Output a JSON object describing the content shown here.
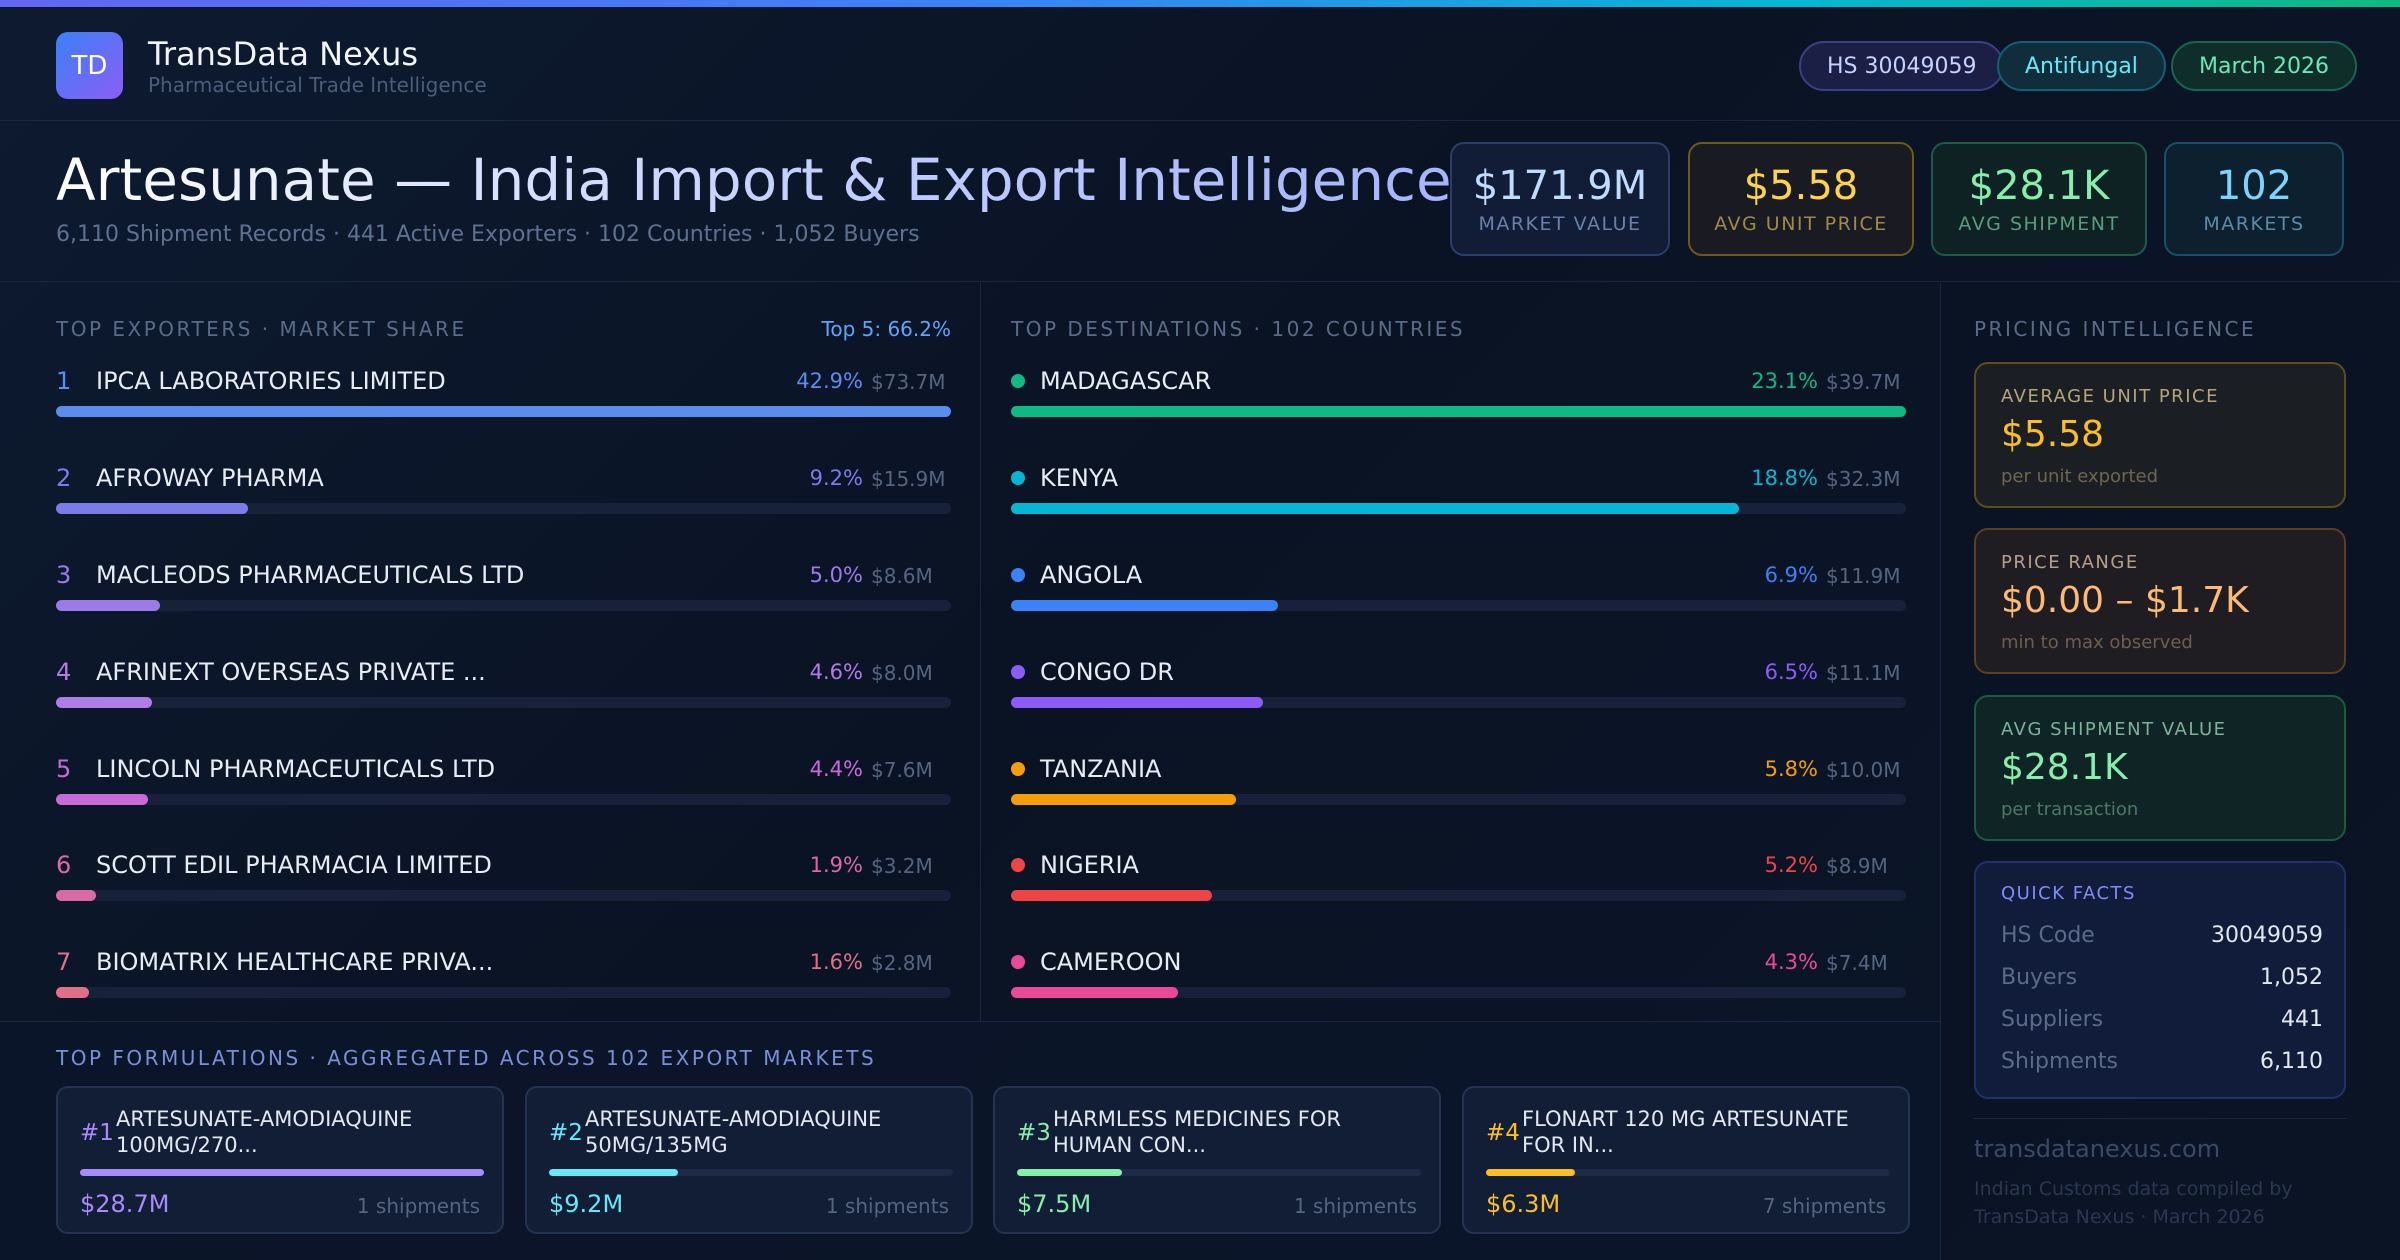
{
  "brand": {
    "logo": "TD",
    "name": "TransData Nexus",
    "subtitle": "Pharmaceutical Trade Intelligence"
  },
  "chips": {
    "hs": "HS 30049059",
    "category": "Antifungal",
    "date": "March 2026"
  },
  "hero": {
    "title": "Artesunate — India Import & Export Intelligence",
    "subtitle": "6,110 Shipment Records · 441 Active Exporters · 102 Countries · 1,052 Buyers"
  },
  "kpis": [
    {
      "value": "$171.9M",
      "label": "MARKET VALUE"
    },
    {
      "value": "$5.58",
      "label": "AVG UNIT PRICE"
    },
    {
      "value": "$28.1K",
      "label": "AVG SHIPMENT"
    },
    {
      "value": "102",
      "label": "MARKETS"
    }
  ],
  "exporters": {
    "label": "TOP EXPORTERS · MARKET SHARE",
    "top5": "Top 5: 66.2%",
    "items": [
      {
        "rank": "1",
        "name": "IPCA LABORATORIES LIMITED",
        "pct": "42.9%",
        "value": "$73.7M",
        "share": 42.9,
        "color": "#5b8def"
      },
      {
        "rank": "2",
        "name": "AFROWAY PHARMA",
        "pct": "9.2%",
        "value": "$15.9M",
        "share": 9.2,
        "color": "#7c7ce8"
      },
      {
        "rank": "3",
        "name": "MACLEODS PHARMACEUTICALS LTD",
        "pct": "5.0%",
        "value": "$8.6M",
        "share": 5.0,
        "color": "#9b7be8"
      },
      {
        "rank": "4",
        "name": "AFRINEXT OVERSEAS PRIVATE ...",
        "pct": "4.6%",
        "value": "$8.0M",
        "share": 4.6,
        "color": "#b07ce6"
      },
      {
        "rank": "5",
        "name": "LINCOLN PHARMACEUTICALS LTD",
        "pct": "4.4%",
        "value": "$7.6M",
        "share": 4.4,
        "color": "#c86ad8"
      },
      {
        "rank": "6",
        "name": "SCOTT EDIL PHARMACIA LIMITED",
        "pct": "1.9%",
        "value": "$3.2M",
        "share": 1.9,
        "color": "#d86aa8"
      },
      {
        "rank": "7",
        "name": "BIOMATRIX HEALTHCARE PRIVA...",
        "pct": "1.6%",
        "value": "$2.8M",
        "share": 1.6,
        "color": "#e07088"
      }
    ]
  },
  "destinations": {
    "label": "TOP DESTINATIONS · 102 COUNTRIES",
    "items": [
      {
        "name": "MADAGASCAR",
        "pct": "23.1%",
        "value": "$39.7M",
        "share": 23.1,
        "color": "#10b981"
      },
      {
        "name": "KENYA",
        "pct": "18.8%",
        "value": "$32.3M",
        "share": 18.8,
        "color": "#06b6d4"
      },
      {
        "name": "ANGOLA",
        "pct": "6.9%",
        "value": "$11.9M",
        "share": 6.9,
        "color": "#3b82f6"
      },
      {
        "name": "CONGO DR",
        "pct": "6.5%",
        "value": "$11.1M",
        "share": 6.5,
        "color": "#8b5cf6"
      },
      {
        "name": "TANZANIA",
        "pct": "5.8%",
        "value": "$10.0M",
        "share": 5.8,
        "color": "#f59e0b"
      },
      {
        "name": "NIGERIA",
        "pct": "5.2%",
        "value": "$8.9M",
        "share": 5.2,
        "color": "#ef4444"
      },
      {
        "name": "CAMEROON",
        "pct": "4.3%",
        "value": "$7.4M",
        "share": 4.3,
        "color": "#ec4899"
      }
    ]
  },
  "formulations": {
    "label": "TOP FORMULATIONS · AGGREGATED ACROSS 102 EXPORT MARKETS",
    "items": [
      {
        "num": "#1",
        "name": "ARTESUNATE-AMODIAQUINE 100MG/270...",
        "value": "$28.7M",
        "shipments": "1 shipments",
        "level": 1.0,
        "color": "#a78bfa"
      },
      {
        "num": "#2",
        "name": "ARTESUNATE-AMODIAQUINE 50MG/135MG",
        "value": "$9.2M",
        "shipments": "1 shipments",
        "level": 0.32,
        "color": "#67e8f9"
      },
      {
        "num": "#3",
        "name": "HARMLESS MEDICINES FOR HUMAN CON...",
        "value": "$7.5M",
        "shipments": "1 shipments",
        "level": 0.26,
        "color": "#86efac"
      },
      {
        "num": "#4",
        "name": "FLONART 120 MG ARTESUNATE FOR IN...",
        "value": "$6.3M",
        "shipments": "7 shipments",
        "level": 0.22,
        "color": "#fbbf24"
      }
    ]
  },
  "pricing": {
    "label": "PRICING INTELLIGENCE",
    "cards": [
      {
        "label": "AVERAGE UNIT PRICE",
        "value": "$5.58",
        "sub": "per unit exported"
      },
      {
        "label": "PRICE RANGE",
        "value": "$0.00 – $1.7K",
        "sub": "min to max observed"
      },
      {
        "label": "AVG SHIPMENT VALUE",
        "value": "$28.1K",
        "sub": "per transaction"
      }
    ],
    "facts": {
      "label": "QUICK FACTS",
      "rows": [
        {
          "key": "HS Code",
          "value": "30049059"
        },
        {
          "key": "Buyers",
          "value": "1,052"
        },
        {
          "key": "Suppliers",
          "value": "441"
        },
        {
          "key": "Shipments",
          "value": "6,110"
        }
      ]
    },
    "site": "transdatanexus.com",
    "footnote": "Indian Customs data compiled by TransData Nexus · March 2026"
  }
}
